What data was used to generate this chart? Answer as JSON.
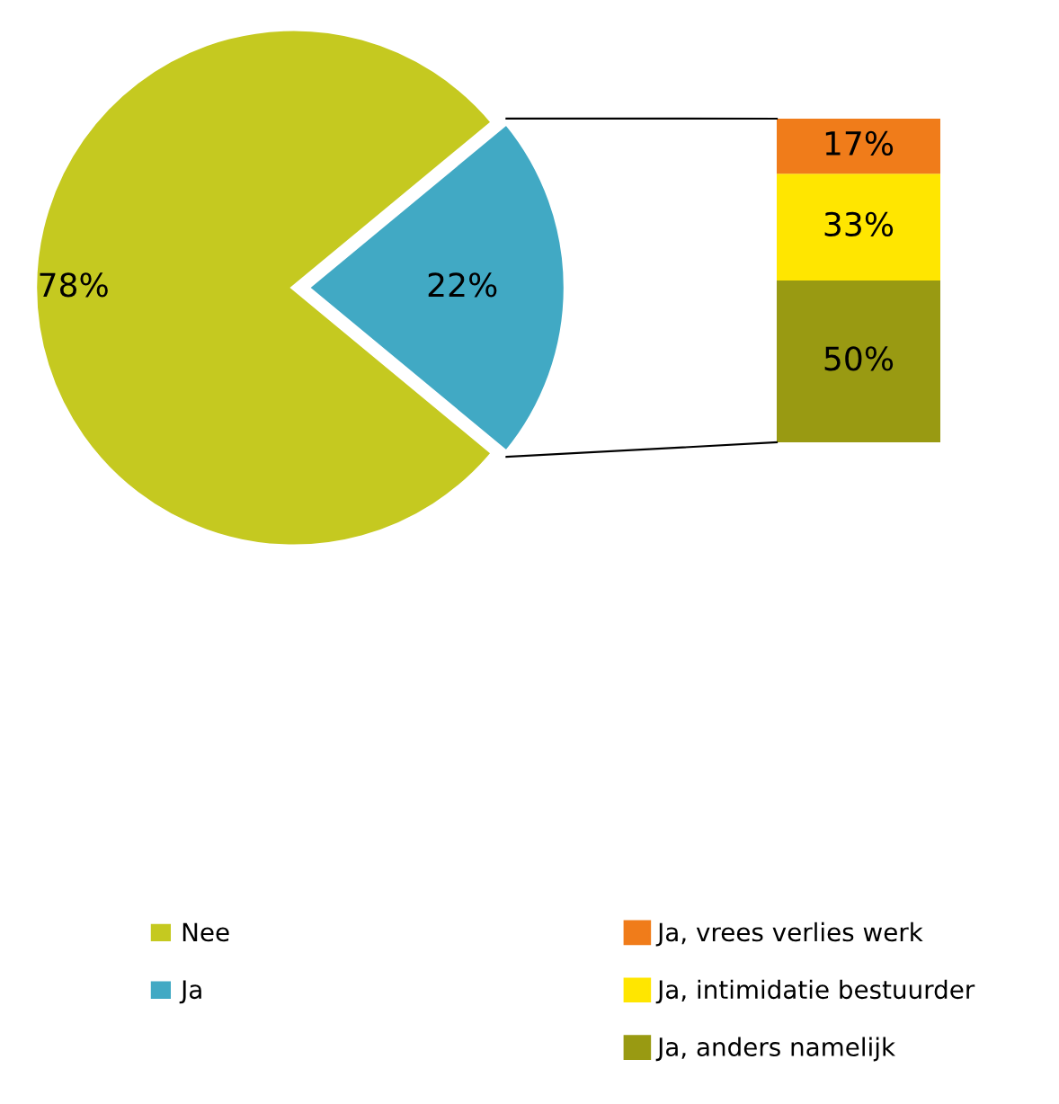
{
  "chart_data": [
    {
      "type": "pie",
      "categories": [
        "Nee",
        "Ja"
      ],
      "values": [
        78,
        22
      ],
      "colors": [
        "#c5c920",
        "#41a9c4"
      ],
      "value_labels": [
        "78%",
        "22%"
      ],
      "legend": "bottom"
    },
    {
      "type": "bar",
      "stacked": true,
      "categories": [
        null
      ],
      "legend": "bottom",
      "series": [
        {
          "name": "Ja, anders namelijk",
          "color": "#999a12",
          "values": [
            50
          ],
          "value_labels": [
            "50%"
          ]
        },
        {
          "name": "Ja, intimidatie bestuurder",
          "color": "#ffe600",
          "values": [
            33
          ],
          "value_labels": [
            "33%"
          ]
        },
        {
          "name": "Ja, vrees verlies werk",
          "color": "#f07c1a",
          "values": [
            17
          ],
          "value_labels": [
            "17%"
          ]
        }
      ]
    }
  ]
}
